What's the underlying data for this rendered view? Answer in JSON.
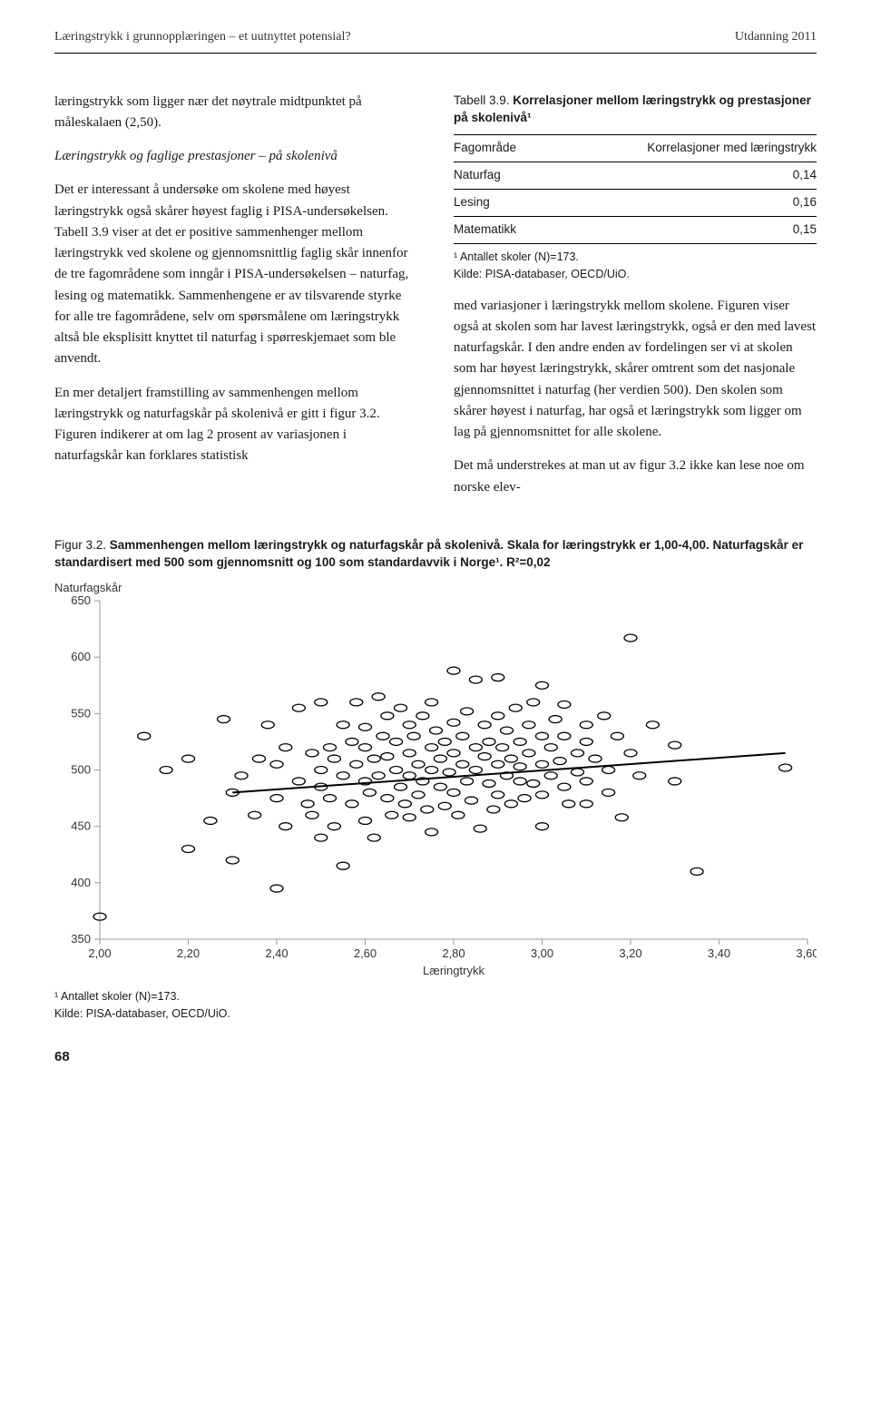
{
  "running_head": {
    "left": "Læringstrykk i grunnopplæringen – et uutnyttet potensial?",
    "right": "Utdanning 2011"
  },
  "left_col": {
    "intro": "læringstrykk som ligger nær det nøytrale midtpunktet på måleskalaen (2,50).",
    "subhead": "Læringstrykk og faglige prestasjoner – på skolenivå",
    "para1": "Det er interessant å undersøke om skolene med høyest læringstrykk også skårer høyest faglig i PISA-undersøkelsen. Tabell 3.9 viser at det er positive sammenhenger mellom læringstrykk ved skolene og gjennomsnittlig faglig skår innenfor de tre fagområdene som inngår i PISA-undersøkelsen – naturfag, lesing og matematikk. Sammenhengene er av tilsvarende styrke for alle tre fagområdene, selv om spørsmålene om læringstrykk altså ble eksplisitt knyttet til naturfag i spørreskjemaet som ble anvendt.",
    "para2": "En mer detaljert framstilling av sammenhengen mellom læringstrykk og naturfagskår på skolenivå er gitt i figur 3.2. Figuren indikerer at om lag 2 prosent av variasjonen i naturfagskår kan forklares statistisk"
  },
  "right_col": {
    "tbl_label": "Tabell 3.9. ",
    "tbl_title": "Korrelasjoner mellom læringstrykk og prestasjoner på skolenivå¹",
    "table": {
      "col1": "Fagområde",
      "col2": "Korrelasjoner med læringstrykk",
      "rows": [
        {
          "c1": "Naturfag",
          "c2": "0,14"
        },
        {
          "c1": "Lesing",
          "c2": "0,16"
        },
        {
          "c1": "Matematikk",
          "c2": "0,15"
        }
      ]
    },
    "fn1": "¹ Antallet skoler (N)=173.",
    "fn2": "Kilde: PISA-databaser, OECD/UiO.",
    "para1": "med variasjoner i læringstrykk mellom skolene. Figuren viser også at skolen som har lavest læringstrykk, også er den med lavest naturfagskår. I den andre enden av fordelingen ser vi at skolen som har høyest læringstrykk, skårer omtrent som det nasjonale gjennomsnittet i naturfag (her verdien 500). Den skolen som skårer høyest i naturfag, har også et læringstrykk som ligger om lag på gjennomsnittet for alle skolene.",
    "para2": "Det må understrekes at man ut av figur 3.2 ikke kan lese noe om norske elev-"
  },
  "figure": {
    "label": "Figur 3.2. ",
    "title": "Sammenhengen mellom læringstrykk og naturfagskår på skolenivå. Skala for læringstrykk er 1,00-4,00. Naturfagskår er standardisert med 500 som gjennomsnitt og 100 som standardavvik i Norge¹. R²=0,02",
    "y_title": "Naturfagskår",
    "x_title": "Læringtrykk",
    "ylim": [
      350,
      650
    ],
    "y_ticks": [
      350,
      400,
      450,
      500,
      550,
      600,
      650
    ],
    "xlim": [
      2.0,
      3.6
    ],
    "x_ticks": [
      "2,00",
      "2,20",
      "2,40",
      "2,60",
      "2,80",
      "3,00",
      "3,20",
      "3,40",
      "3,60"
    ],
    "x_tick_vals": [
      2.0,
      2.2,
      2.4,
      2.6,
      2.8,
      3.0,
      3.2,
      3.4,
      3.6
    ],
    "line": {
      "x1": 2.3,
      "y1": 480,
      "x2": 3.55,
      "y2": 515
    },
    "axis_color": "#9a9a9a",
    "tick_color": "#9a9a9a",
    "text_color": "#333333",
    "marker_stroke": "#000000",
    "marker_fill": "none",
    "marker_rx": 7,
    "marker_ry": 4,
    "bg": "#ffffff",
    "title_fontsize": 13.5,
    "label_fontsize": 13,
    "points": [
      [
        2.0,
        370
      ],
      [
        2.1,
        530
      ],
      [
        2.15,
        500
      ],
      [
        2.2,
        430
      ],
      [
        2.2,
        510
      ],
      [
        2.25,
        455
      ],
      [
        2.28,
        545
      ],
      [
        2.3,
        480
      ],
      [
        2.3,
        420
      ],
      [
        2.32,
        495
      ],
      [
        2.35,
        460
      ],
      [
        2.36,
        510
      ],
      [
        2.38,
        540
      ],
      [
        2.4,
        475
      ],
      [
        2.4,
        505
      ],
      [
        2.4,
        395
      ],
      [
        2.42,
        520
      ],
      [
        2.42,
        450
      ],
      [
        2.45,
        490
      ],
      [
        2.45,
        555
      ],
      [
        2.47,
        470
      ],
      [
        2.48,
        515
      ],
      [
        2.48,
        460
      ],
      [
        2.5,
        500
      ],
      [
        2.5,
        440
      ],
      [
        2.5,
        560
      ],
      [
        2.5,
        485
      ],
      [
        2.52,
        520
      ],
      [
        2.52,
        475
      ],
      [
        2.53,
        510
      ],
      [
        2.53,
        450
      ],
      [
        2.55,
        495
      ],
      [
        2.55,
        540
      ],
      [
        2.55,
        415
      ],
      [
        2.57,
        525
      ],
      [
        2.57,
        470
      ],
      [
        2.58,
        505
      ],
      [
        2.58,
        560
      ],
      [
        2.6,
        490
      ],
      [
        2.6,
        520
      ],
      [
        2.6,
        455
      ],
      [
        2.6,
        538
      ],
      [
        2.61,
        480
      ],
      [
        2.62,
        510
      ],
      [
        2.62,
        440
      ],
      [
        2.63,
        565
      ],
      [
        2.63,
        495
      ],
      [
        2.64,
        530
      ],
      [
        2.65,
        475
      ],
      [
        2.65,
        512
      ],
      [
        2.65,
        548
      ],
      [
        2.66,
        460
      ],
      [
        2.67,
        500
      ],
      [
        2.67,
        525
      ],
      [
        2.68,
        485
      ],
      [
        2.68,
        555
      ],
      [
        2.69,
        470
      ],
      [
        2.7,
        515
      ],
      [
        2.7,
        540
      ],
      [
        2.7,
        495
      ],
      [
        2.7,
        458
      ],
      [
        2.71,
        530
      ],
      [
        2.72,
        505
      ],
      [
        2.72,
        478
      ],
      [
        2.73,
        548
      ],
      [
        2.73,
        490
      ],
      [
        2.74,
        465
      ],
      [
        2.75,
        520
      ],
      [
        2.75,
        500
      ],
      [
        2.75,
        560
      ],
      [
        2.75,
        445
      ],
      [
        2.76,
        535
      ],
      [
        2.77,
        510
      ],
      [
        2.77,
        485
      ],
      [
        2.78,
        525
      ],
      [
        2.78,
        468
      ],
      [
        2.79,
        498
      ],
      [
        2.8,
        542
      ],
      [
        2.8,
        515
      ],
      [
        2.8,
        480
      ],
      [
        2.8,
        588
      ],
      [
        2.81,
        460
      ],
      [
        2.82,
        505
      ],
      [
        2.82,
        530
      ],
      [
        2.83,
        490
      ],
      [
        2.83,
        552
      ],
      [
        2.84,
        473
      ],
      [
        2.85,
        520
      ],
      [
        2.85,
        500
      ],
      [
        2.85,
        580
      ],
      [
        2.86,
        448
      ],
      [
        2.87,
        540
      ],
      [
        2.87,
        512
      ],
      [
        2.88,
        488
      ],
      [
        2.88,
        525
      ],
      [
        2.89,
        465
      ],
      [
        2.9,
        505
      ],
      [
        2.9,
        548
      ],
      [
        2.9,
        478
      ],
      [
        2.9,
        582
      ],
      [
        2.91,
        520
      ],
      [
        2.92,
        495
      ],
      [
        2.92,
        535
      ],
      [
        2.93,
        510
      ],
      [
        2.93,
        470
      ],
      [
        2.94,
        555
      ],
      [
        2.95,
        490
      ],
      [
        2.95,
        525
      ],
      [
        2.95,
        503
      ],
      [
        2.96,
        475
      ],
      [
        2.97,
        540
      ],
      [
        2.97,
        515
      ],
      [
        2.98,
        488
      ],
      [
        2.98,
        560
      ],
      [
        3.0,
        505
      ],
      [
        3.0,
        530
      ],
      [
        3.0,
        478
      ],
      [
        3.0,
        575
      ],
      [
        3.0,
        450
      ],
      [
        3.02,
        520
      ],
      [
        3.02,
        495
      ],
      [
        3.03,
        545
      ],
      [
        3.04,
        508
      ],
      [
        3.05,
        485
      ],
      [
        3.05,
        530
      ],
      [
        3.05,
        558
      ],
      [
        3.06,
        470
      ],
      [
        3.08,
        515
      ],
      [
        3.08,
        498
      ],
      [
        3.1,
        540
      ],
      [
        3.1,
        525
      ],
      [
        3.1,
        490
      ],
      [
        3.1,
        470
      ],
      [
        3.12,
        510
      ],
      [
        3.14,
        548
      ],
      [
        3.15,
        500
      ],
      [
        3.15,
        480
      ],
      [
        3.17,
        530
      ],
      [
        3.18,
        458
      ],
      [
        3.2,
        617
      ],
      [
        3.2,
        515
      ],
      [
        3.22,
        495
      ],
      [
        3.25,
        540
      ],
      [
        3.3,
        522
      ],
      [
        3.3,
        490
      ],
      [
        3.35,
        410
      ],
      [
        3.55,
        502
      ]
    ],
    "fn1": "¹ Antallet skoler (N)=173.",
    "fn2": "Kilde: PISA-databaser, OECD/UiO."
  },
  "page_num": "68"
}
